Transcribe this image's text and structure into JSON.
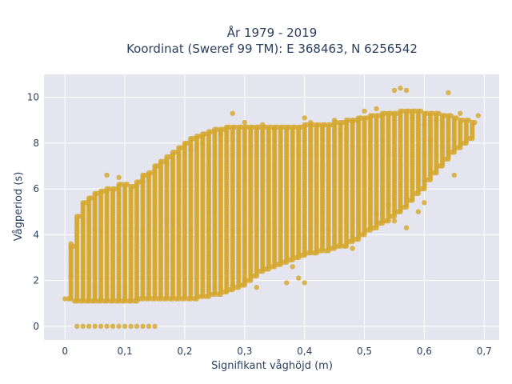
{
  "chart_data": {
    "type": "scatter",
    "title_lines": [
      "År 1979 - 2019",
      "Koordinat (Sweref 99 TM): E 368463, N 6256542"
    ],
    "xlabel": "Signifikant våghöjd (m)",
    "ylabel": "Vågperiod (s)",
    "xlim": [
      -0.035,
      0.725
    ],
    "ylim": [
      -0.6,
      11.0
    ],
    "x_ticks": [
      0,
      0.1,
      0.2,
      0.3,
      0.4,
      0.5,
      0.6,
      0.7
    ],
    "x_tick_labels": [
      "0",
      "0,1",
      "0,2",
      "0,3",
      "0,4",
      "0,5",
      "0,6",
      "0,7"
    ],
    "y_ticks": [
      0,
      2,
      4,
      6,
      8,
      10
    ],
    "y_tick_labels": [
      "0",
      "2",
      "4",
      "6",
      "8",
      "10"
    ],
    "grid": true,
    "background_color": "#e5e5f0",
    "marker_color": "#d4a62a",
    "sampling_step_m": 0.01,
    "series": [
      {
        "x": [
          0.01,
          0.02,
          0.03,
          0.04,
          0.05,
          0.06,
          0.07,
          0.08,
          0.09,
          0.1,
          0.11,
          0.12,
          0.13,
          0.14,
          0.15,
          0.16,
          0.17,
          0.18,
          0.19,
          0.2,
          0.21,
          0.22,
          0.23,
          0.24,
          0.25,
          0.26,
          0.27,
          0.28,
          0.29,
          0.3,
          0.31,
          0.32,
          0.33,
          0.34,
          0.35,
          0.36,
          0.37,
          0.38,
          0.39,
          0.4,
          0.41,
          0.42,
          0.43,
          0.44,
          0.45,
          0.46,
          0.47,
          0.48,
          0.49,
          0.5,
          0.51,
          0.52,
          0.53,
          0.54,
          0.55,
          0.56,
          0.57,
          0.58,
          0.59,
          0.6,
          0.61,
          0.62,
          0.63,
          0.64,
          0.65,
          0.66,
          0.67,
          0.68
        ],
        "ymin": [
          1.2,
          1.1,
          1.1,
          1.1,
          1.1,
          1.1,
          1.1,
          1.1,
          1.1,
          1.1,
          1.1,
          1.1,
          1.2,
          1.2,
          1.2,
          1.2,
          1.2,
          1.2,
          1.2,
          1.2,
          1.2,
          1.2,
          1.3,
          1.3,
          1.4,
          1.4,
          1.5,
          1.6,
          1.7,
          1.8,
          2.0,
          2.2,
          2.4,
          2.5,
          2.6,
          2.7,
          2.8,
          2.9,
          3.0,
          3.1,
          3.2,
          3.2,
          3.3,
          3.3,
          3.4,
          3.5,
          3.5,
          3.7,
          3.8,
          4.0,
          4.2,
          4.3,
          4.5,
          4.6,
          4.8,
          5.0,
          5.2,
          5.5,
          5.8,
          6.0,
          6.4,
          6.7,
          7.0,
          7.3,
          7.6,
          7.8,
          8.0,
          8.2
        ],
        "ymax": [
          3.5,
          4.8,
          5.4,
          5.6,
          5.8,
          5.9,
          6.0,
          6.0,
          6.2,
          6.2,
          6.1,
          6.3,
          6.6,
          6.7,
          7.0,
          7.2,
          7.4,
          7.6,
          7.8,
          8.0,
          8.2,
          8.3,
          8.4,
          8.5,
          8.6,
          8.6,
          8.7,
          8.7,
          8.7,
          8.7,
          8.7,
          8.7,
          8.7,
          8.7,
          8.7,
          8.7,
          8.7,
          8.7,
          8.7,
          8.8,
          8.8,
          8.8,
          8.8,
          8.8,
          8.9,
          8.9,
          9.0,
          9.0,
          9.1,
          9.1,
          9.2,
          9.2,
          9.3,
          9.3,
          9.3,
          9.4,
          9.4,
          9.4,
          9.4,
          9.3,
          9.3,
          9.3,
          9.2,
          9.2,
          9.1,
          9.0,
          9.0,
          8.9
        ]
      }
    ],
    "extra_points": {
      "x": [
        0.0,
        0.01,
        0.01,
        0.02,
        0.03,
        0.04,
        0.05,
        0.06,
        0.07,
        0.08,
        0.09,
        0.1,
        0.11,
        0.12,
        0.13,
        0.14,
        0.15,
        0.07,
        0.09,
        0.13,
        0.17,
        0.21,
        0.23,
        0.26,
        0.28,
        0.3,
        0.33,
        0.35,
        0.4,
        0.41,
        0.45,
        0.46,
        0.48,
        0.5,
        0.52,
        0.55,
        0.56,
        0.57,
        0.58,
        0.6,
        0.61,
        0.62,
        0.64,
        0.66,
        0.69,
        0.55,
        0.57,
        0.59,
        0.64,
        0.28,
        0.3,
        0.38,
        0.52,
        0.54,
        0.57,
        0.6,
        0.65,
        0.37,
        0.39,
        0.42,
        0.48,
        0.4,
        0.32
      ],
      "y": [
        1.2,
        2.2,
        3.6,
        0,
        0,
        0,
        0,
        0,
        0,
        0,
        0,
        0,
        0,
        0,
        0,
        0,
        0,
        6.6,
        6.5,
        6.3,
        7.1,
        7.7,
        8.0,
        8.4,
        9.3,
        8.9,
        8.8,
        8.6,
        9.1,
        8.9,
        9.0,
        8.4,
        8.9,
        9.4,
        9.5,
        10.3,
        10.4,
        10.3,
        9.1,
        8.8,
        8.1,
        9.0,
        10.2,
        9.3,
        9.2,
        4.6,
        4.3,
        5.0,
        7.6,
        1.8,
        2.0,
        2.6,
        4.9,
        5.3,
        5.6,
        5.4,
        6.6,
        1.9,
        2.1,
        3.3,
        3.4,
        1.9,
        1.7
      ]
    }
  }
}
